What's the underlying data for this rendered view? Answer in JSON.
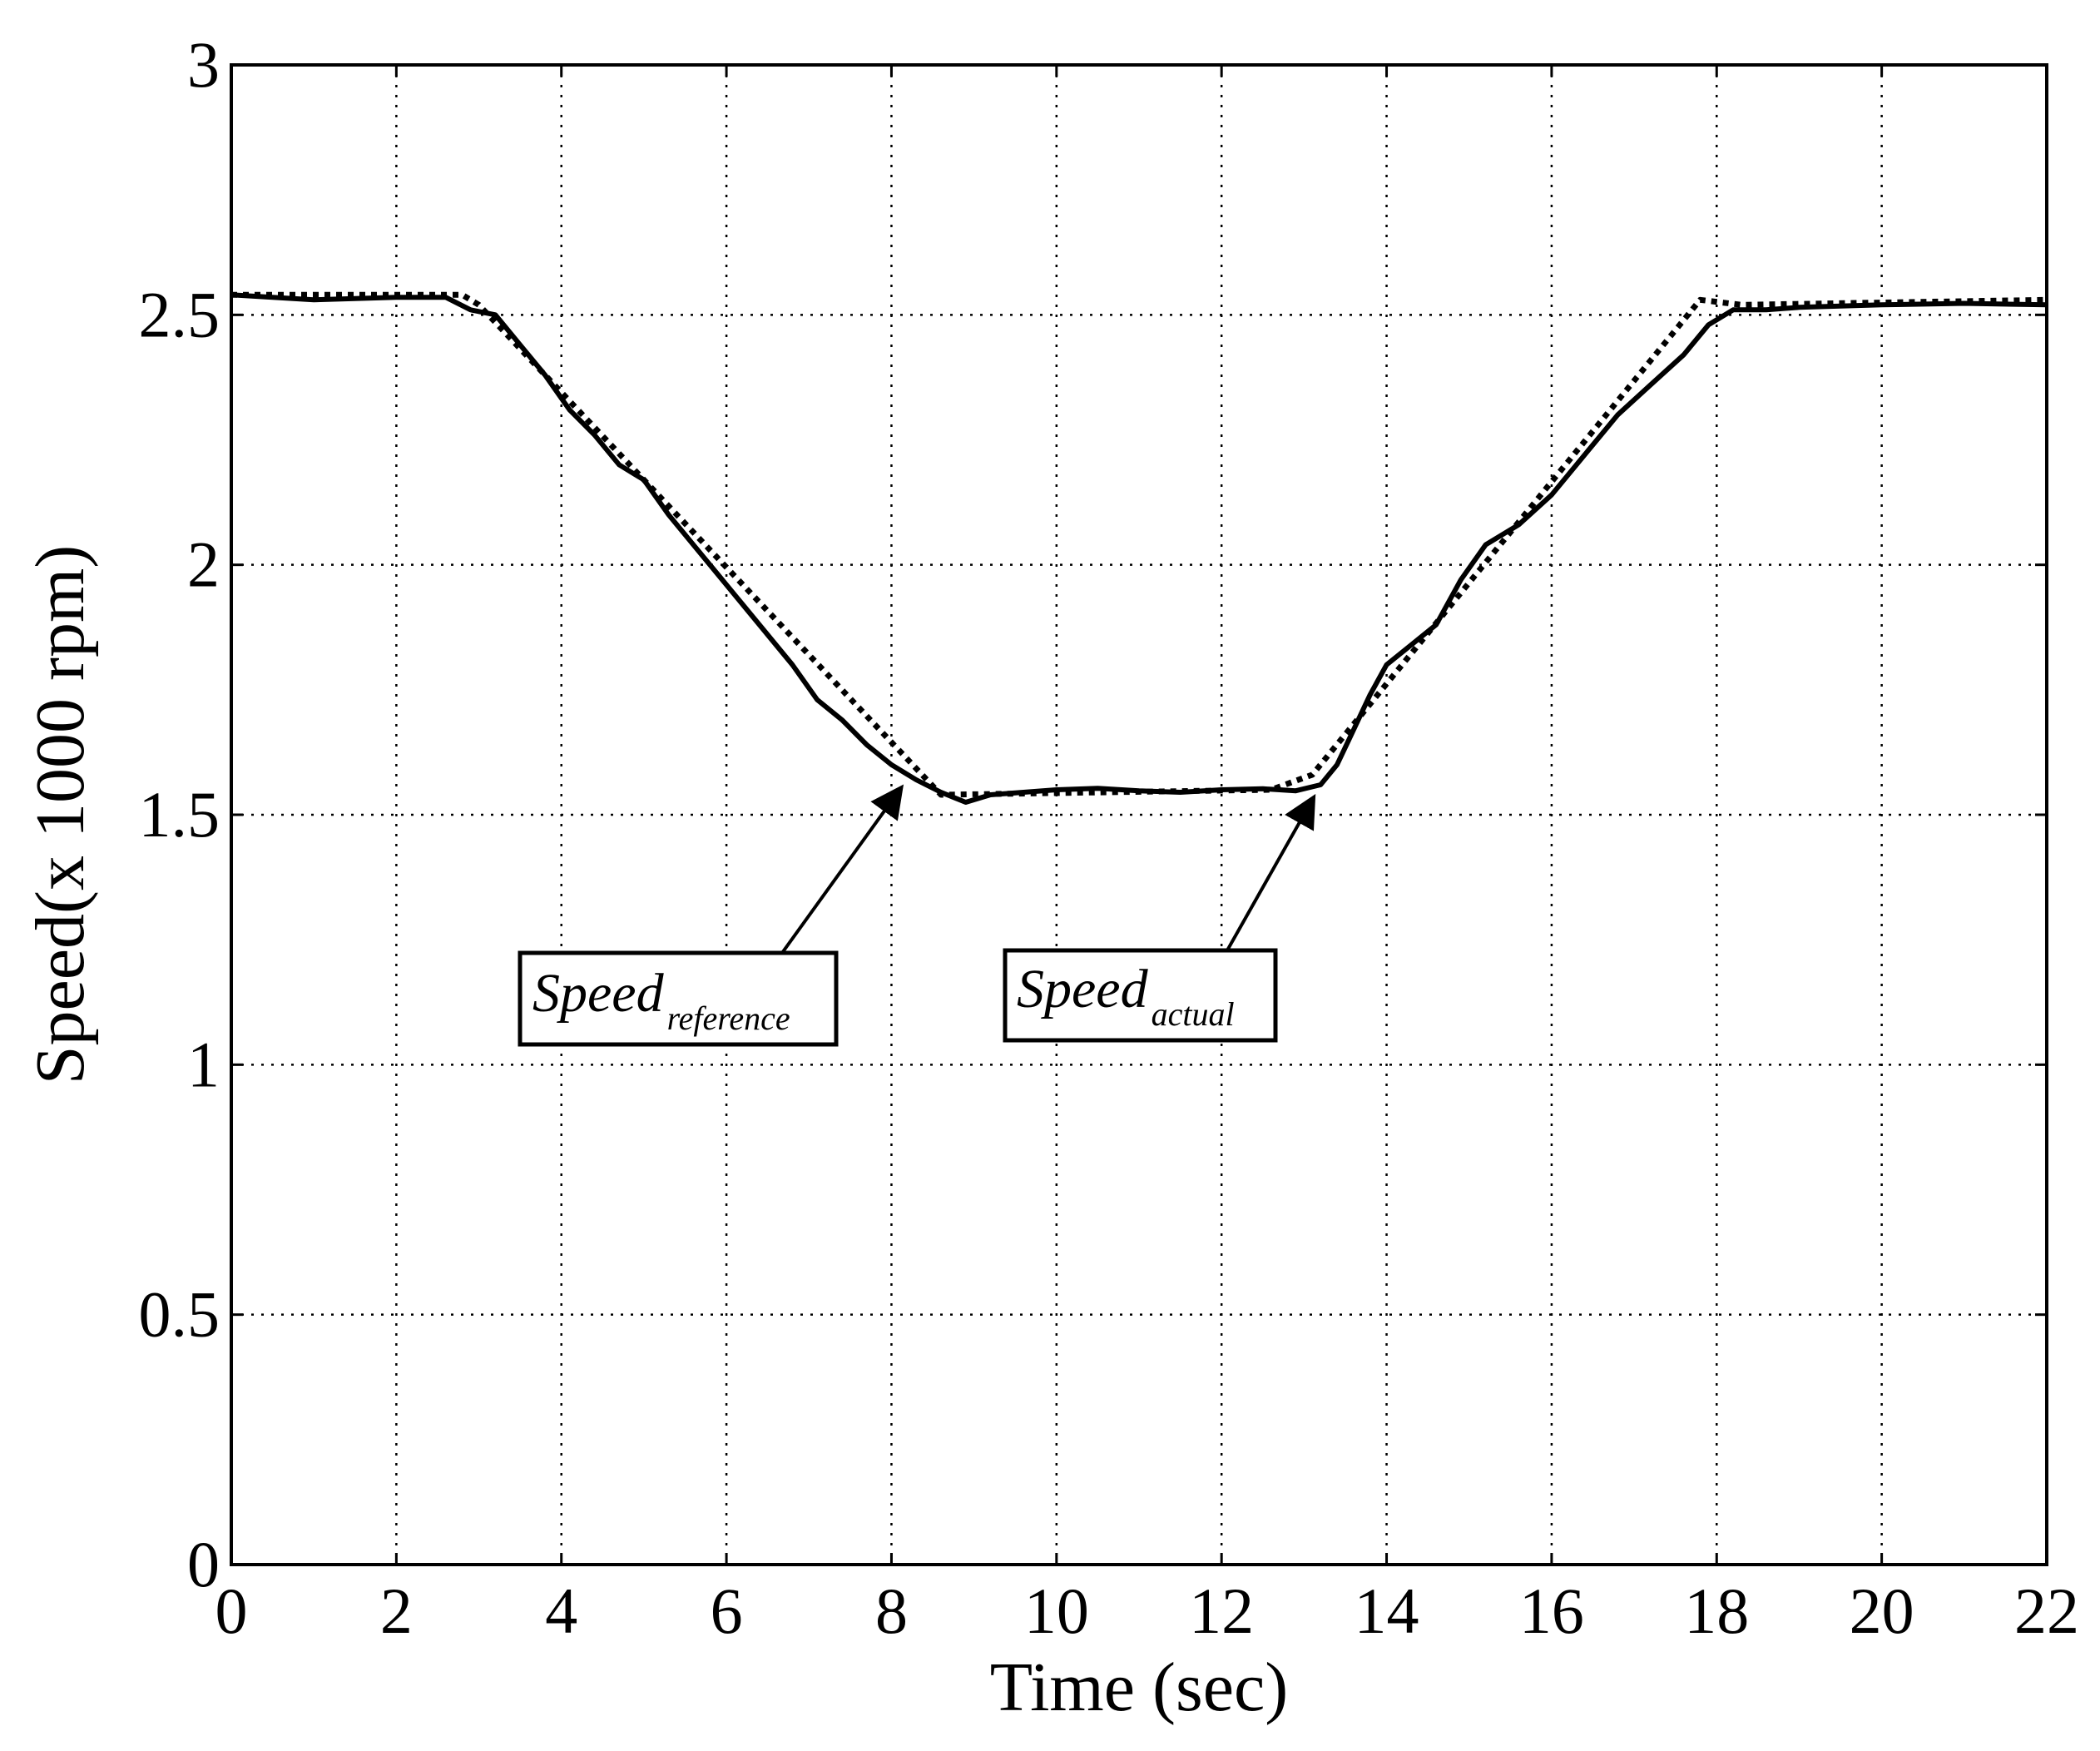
{
  "chart_data": {
    "type": "line",
    "title": "",
    "xlabel": "Time (sec)",
    "ylabel": "Speed(x 1000 rpm)",
    "xlim": [
      0,
      22
    ],
    "ylim": [
      0,
      3
    ],
    "xticks": [
      0,
      2,
      4,
      6,
      8,
      10,
      12,
      14,
      16,
      18,
      20,
      22
    ],
    "yticks": [
      0,
      0.5,
      1,
      1.5,
      2,
      2.5,
      3
    ],
    "xtick_labels": [
      "0",
      "2",
      "4",
      "6",
      "8",
      "10",
      "12",
      "14",
      "16",
      "18",
      "20",
      "22"
    ],
    "ytick_labels": [
      "0",
      "0.5",
      "1",
      "1.5",
      "2",
      "2.5",
      "3"
    ],
    "grid": true,
    "series": [
      {
        "id": "reference",
        "style": "dotted",
        "color": "#000000",
        "x": [
          0,
          2.8,
          3.0,
          8.6,
          12.6,
          13.1,
          17.8,
          18.3,
          22
        ],
        "y": [
          2.54,
          2.54,
          2.52,
          1.54,
          1.55,
          1.58,
          2.53,
          2.52,
          2.53
        ]
      },
      {
        "id": "actual",
        "style": "solid",
        "color": "#000000",
        "x": [
          0,
          1,
          2,
          2.6,
          2.9,
          3.2,
          3.5,
          3.8,
          4.1,
          4.4,
          4.7,
          5.0,
          5.3,
          5.6,
          5.9,
          6.2,
          6.5,
          6.8,
          7.1,
          7.4,
          7.7,
          8.0,
          8.3,
          8.6,
          8.9,
          9.2,
          9.6,
          10.0,
          10.5,
          11.0,
          11.5,
          12.0,
          12.5,
          12.9,
          13.2,
          13.4,
          13.6,
          13.8,
          14.0,
          14.3,
          14.6,
          14.9,
          15.2,
          15.6,
          16.0,
          16.4,
          16.8,
          17.2,
          17.6,
          17.9,
          18.2,
          18.6,
          19,
          20,
          21,
          22
        ],
        "y": [
          2.54,
          2.53,
          2.535,
          2.535,
          2.51,
          2.5,
          2.44,
          2.38,
          2.31,
          2.26,
          2.2,
          2.17,
          2.1,
          2.04,
          1.98,
          1.92,
          1.86,
          1.8,
          1.73,
          1.69,
          1.64,
          1.6,
          1.57,
          1.545,
          1.525,
          1.54,
          1.545,
          1.55,
          1.553,
          1.548,
          1.545,
          1.55,
          1.552,
          1.548,
          1.56,
          1.6,
          1.67,
          1.74,
          1.8,
          1.84,
          1.88,
          1.97,
          2.04,
          2.08,
          2.14,
          2.22,
          2.3,
          2.36,
          2.42,
          2.48,
          2.51,
          2.51,
          2.515,
          2.52,
          2.523,
          2.52
        ]
      }
    ],
    "annotations": [
      {
        "id": "reference",
        "text": "Speed",
        "subscript": "reference",
        "arrow_to": [
          8.1,
          1.57
        ]
      },
      {
        "id": "actual",
        "text": "Speed",
        "subscript": "actual",
        "arrow_to": [
          13.1,
          1.55
        ]
      }
    ]
  }
}
